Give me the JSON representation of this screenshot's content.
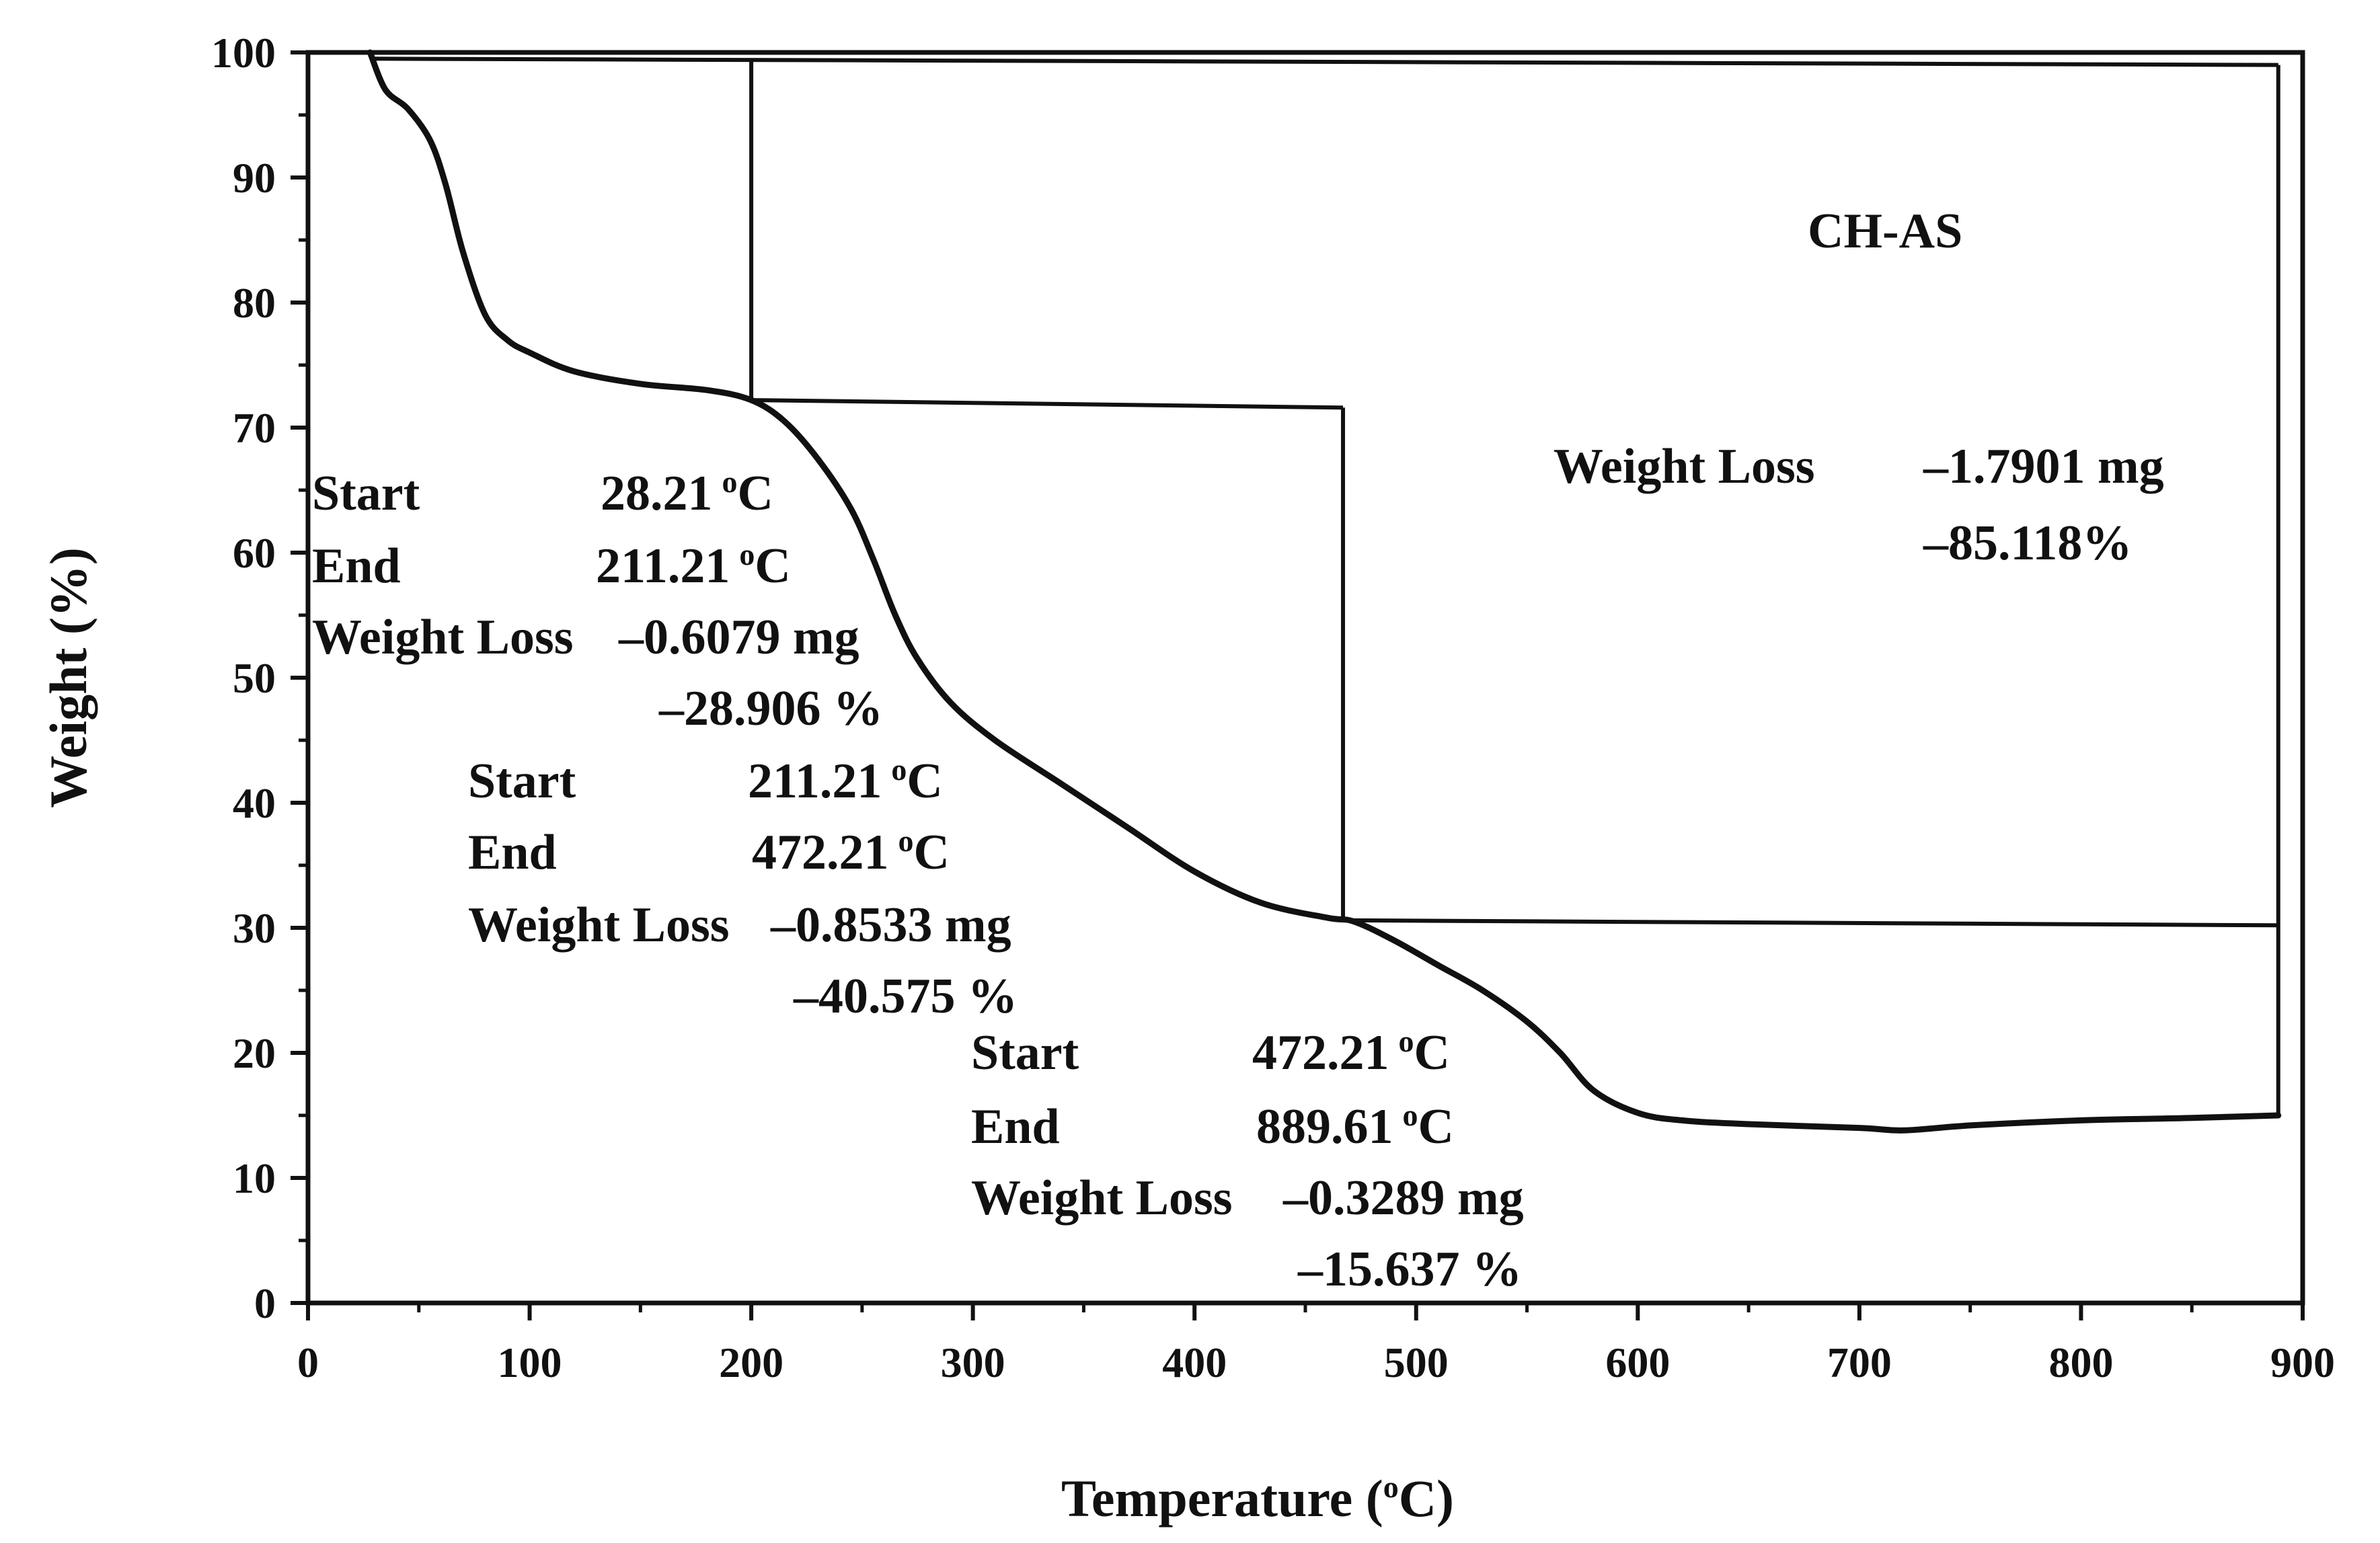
{
  "chart_data": {
    "type": "line",
    "title": "",
    "sample_label": "CH-AS",
    "xlabel": {
      "main": "Temperature (",
      "sup": "o",
      "tail": "C)"
    },
    "ylabel": "Weight  (%)",
    "xlim": [
      0,
      900
    ],
    "ylim": [
      0,
      100
    ],
    "x_ticks": [
      "0",
      "100",
      "200",
      "300",
      "400",
      "500",
      "600",
      "700",
      "800",
      "900"
    ],
    "y_ticks": [
      "0",
      "10",
      "20",
      "30",
      "40",
      "50",
      "60",
      "70",
      "80",
      "90",
      "100"
    ],
    "series": [
      {
        "name": "CH-AS",
        "x": [
          28,
          35,
          45,
          55,
          62,
          70,
          80,
          90,
          100,
          120,
          150,
          180,
          200,
          215,
          230,
          245,
          255,
          265,
          275,
          290,
          310,
          340,
          370,
          400,
          430,
          460,
          472,
          490,
          510,
          530,
          550,
          565,
          580,
          600,
          620,
          650,
          700,
          720,
          750,
          800,
          850,
          889
        ],
        "y": [
          100,
          97,
          95.5,
          93,
          89.5,
          84,
          79,
          77,
          76,
          74.5,
          73.5,
          73,
          72.2,
          70.5,
          67.5,
          63.5,
          59.5,
          55,
          51.5,
          48,
          45,
          41.5,
          38,
          34.5,
          32,
          30.8,
          30.5,
          29,
          27,
          25,
          22.5,
          20,
          17,
          15.2,
          14.6,
          14.3,
          14,
          13.8,
          14.2,
          14.6,
          14.8,
          15
        ]
      }
    ],
    "step_lines": [
      {
        "name": "step-1-level-lines",
        "segments": [
          [
            [
              28,
              99.5
            ],
            [
              889,
              99
            ]
          ],
          [
            [
              200,
              99.5
            ],
            [
              200,
              72.2
            ]
          ],
          [
            [
              200,
              72.2
            ],
            [
              467,
              71.6
            ]
          ],
          [
            [
              467,
              71.6
            ],
            [
              467,
              30.6
            ]
          ]
        ]
      },
      {
        "name": "step-2-level-lines",
        "segments": [
          [
            [
              467,
              30.6
            ],
            [
              889,
              30.2
            ]
          ],
          [
            [
              889,
              99
            ],
            [
              889,
              14.8
            ]
          ]
        ]
      }
    ],
    "annotations": [
      {
        "id": "step1",
        "start_label": "Start",
        "start_value": "28.21",
        "start_unit": "C",
        "end_label": "End",
        "end_value": "211.21",
        "end_unit": "C",
        "loss_label": "Weight Loss",
        "loss_mg": "–0.6079 mg",
        "loss_pct": "–28.906 %"
      },
      {
        "id": "step2",
        "start_label": "Start",
        "start_value": "211.21",
        "start_unit": "C",
        "end_label": "End",
        "end_value": "472.21",
        "end_unit": "C",
        "loss_label": "Weight Loss",
        "loss_mg": "–0.8533 mg",
        "loss_pct": "–40.575 %"
      },
      {
        "id": "step3",
        "start_label": "Start",
        "start_value": "472.21",
        "start_unit": "C",
        "end_label": "End",
        "end_value": "889.61",
        "end_unit": "C",
        "loss_label": "Weight Loss",
        "loss_mg": "–0.3289 mg",
        "loss_pct": "–15.637 %"
      },
      {
        "id": "total",
        "loss_label": "Weight Loss",
        "loss_mg": "–1.7901 mg",
        "loss_pct": "–85.118%"
      }
    ],
    "degree_symbol": "o",
    "line_color": "#111111",
    "background": "#ffffff"
  }
}
